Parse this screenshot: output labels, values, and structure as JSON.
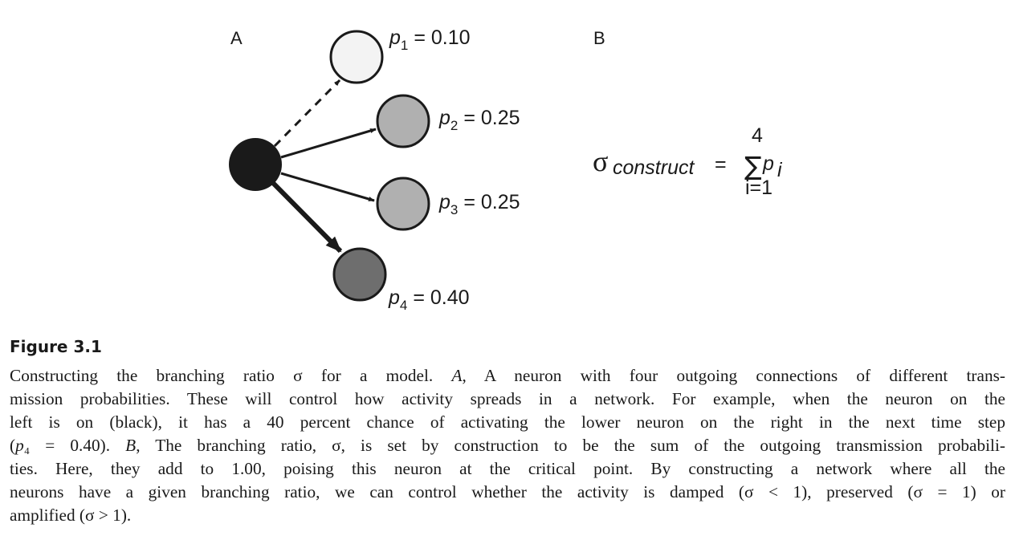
{
  "panels": {
    "a_label": "A",
    "b_label": "B"
  },
  "diagram": {
    "source_node": {
      "state": "on",
      "color": "#1a1a1a"
    },
    "targets": [
      {
        "sub": "1",
        "value": "0.10",
        "fill": "#f3f3f3",
        "edge": "dashed"
      },
      {
        "sub": "2",
        "value": "0.25",
        "fill": "#b0b0b0",
        "edge": "thin"
      },
      {
        "sub": "3",
        "value": "0.25",
        "fill": "#b0b0b0",
        "edge": "thin"
      },
      {
        "sub": "4",
        "value": "0.40",
        "fill": "#6e6e6e",
        "edge": "thick"
      }
    ],
    "p_symbol": "p",
    "equals": "="
  },
  "formula": {
    "sigma": "σ",
    "subscript": "construct",
    "equals": "=",
    "sum": "∑",
    "upper": "4",
    "lower": "i=1",
    "term": "p",
    "term_sub": "i"
  },
  "caption": {
    "title": "Figure 3.1",
    "lines": [
      [
        {
          "t": "Constructing the branching ratio σ for a model. "
        },
        {
          "t": "A",
          "i": true
        },
        {
          "t": ", A neuron with four outgoing connections of different trans-"
        }
      ],
      [
        {
          "t": "mission probabilities. These will control how activity spreads in a network. For example, when the neuron on the"
        }
      ],
      [
        {
          "t": "left is on (black), it has a 40 percent chance of activating the lower neuron on the right in the next time step"
        }
      ],
      [
        {
          "t": "("
        },
        {
          "t": "p",
          "i": true
        },
        {
          "t": "₄ = 0.40). "
        },
        {
          "t": "B",
          "i": true
        },
        {
          "t": ", The branching ratio, σ, is set by construction to be the sum of the outgoing transmission probabili-"
        }
      ],
      [
        {
          "t": "ties. Here, they add to 1.00, poising this neuron at the critical point. By constructing a network where all the"
        }
      ],
      [
        {
          "t": "neurons have a given branching ratio, we can control whether the activity is damped (σ < 1), preserved (σ = 1) or"
        }
      ],
      [
        {
          "t": "amplified (σ > 1)."
        }
      ]
    ]
  }
}
